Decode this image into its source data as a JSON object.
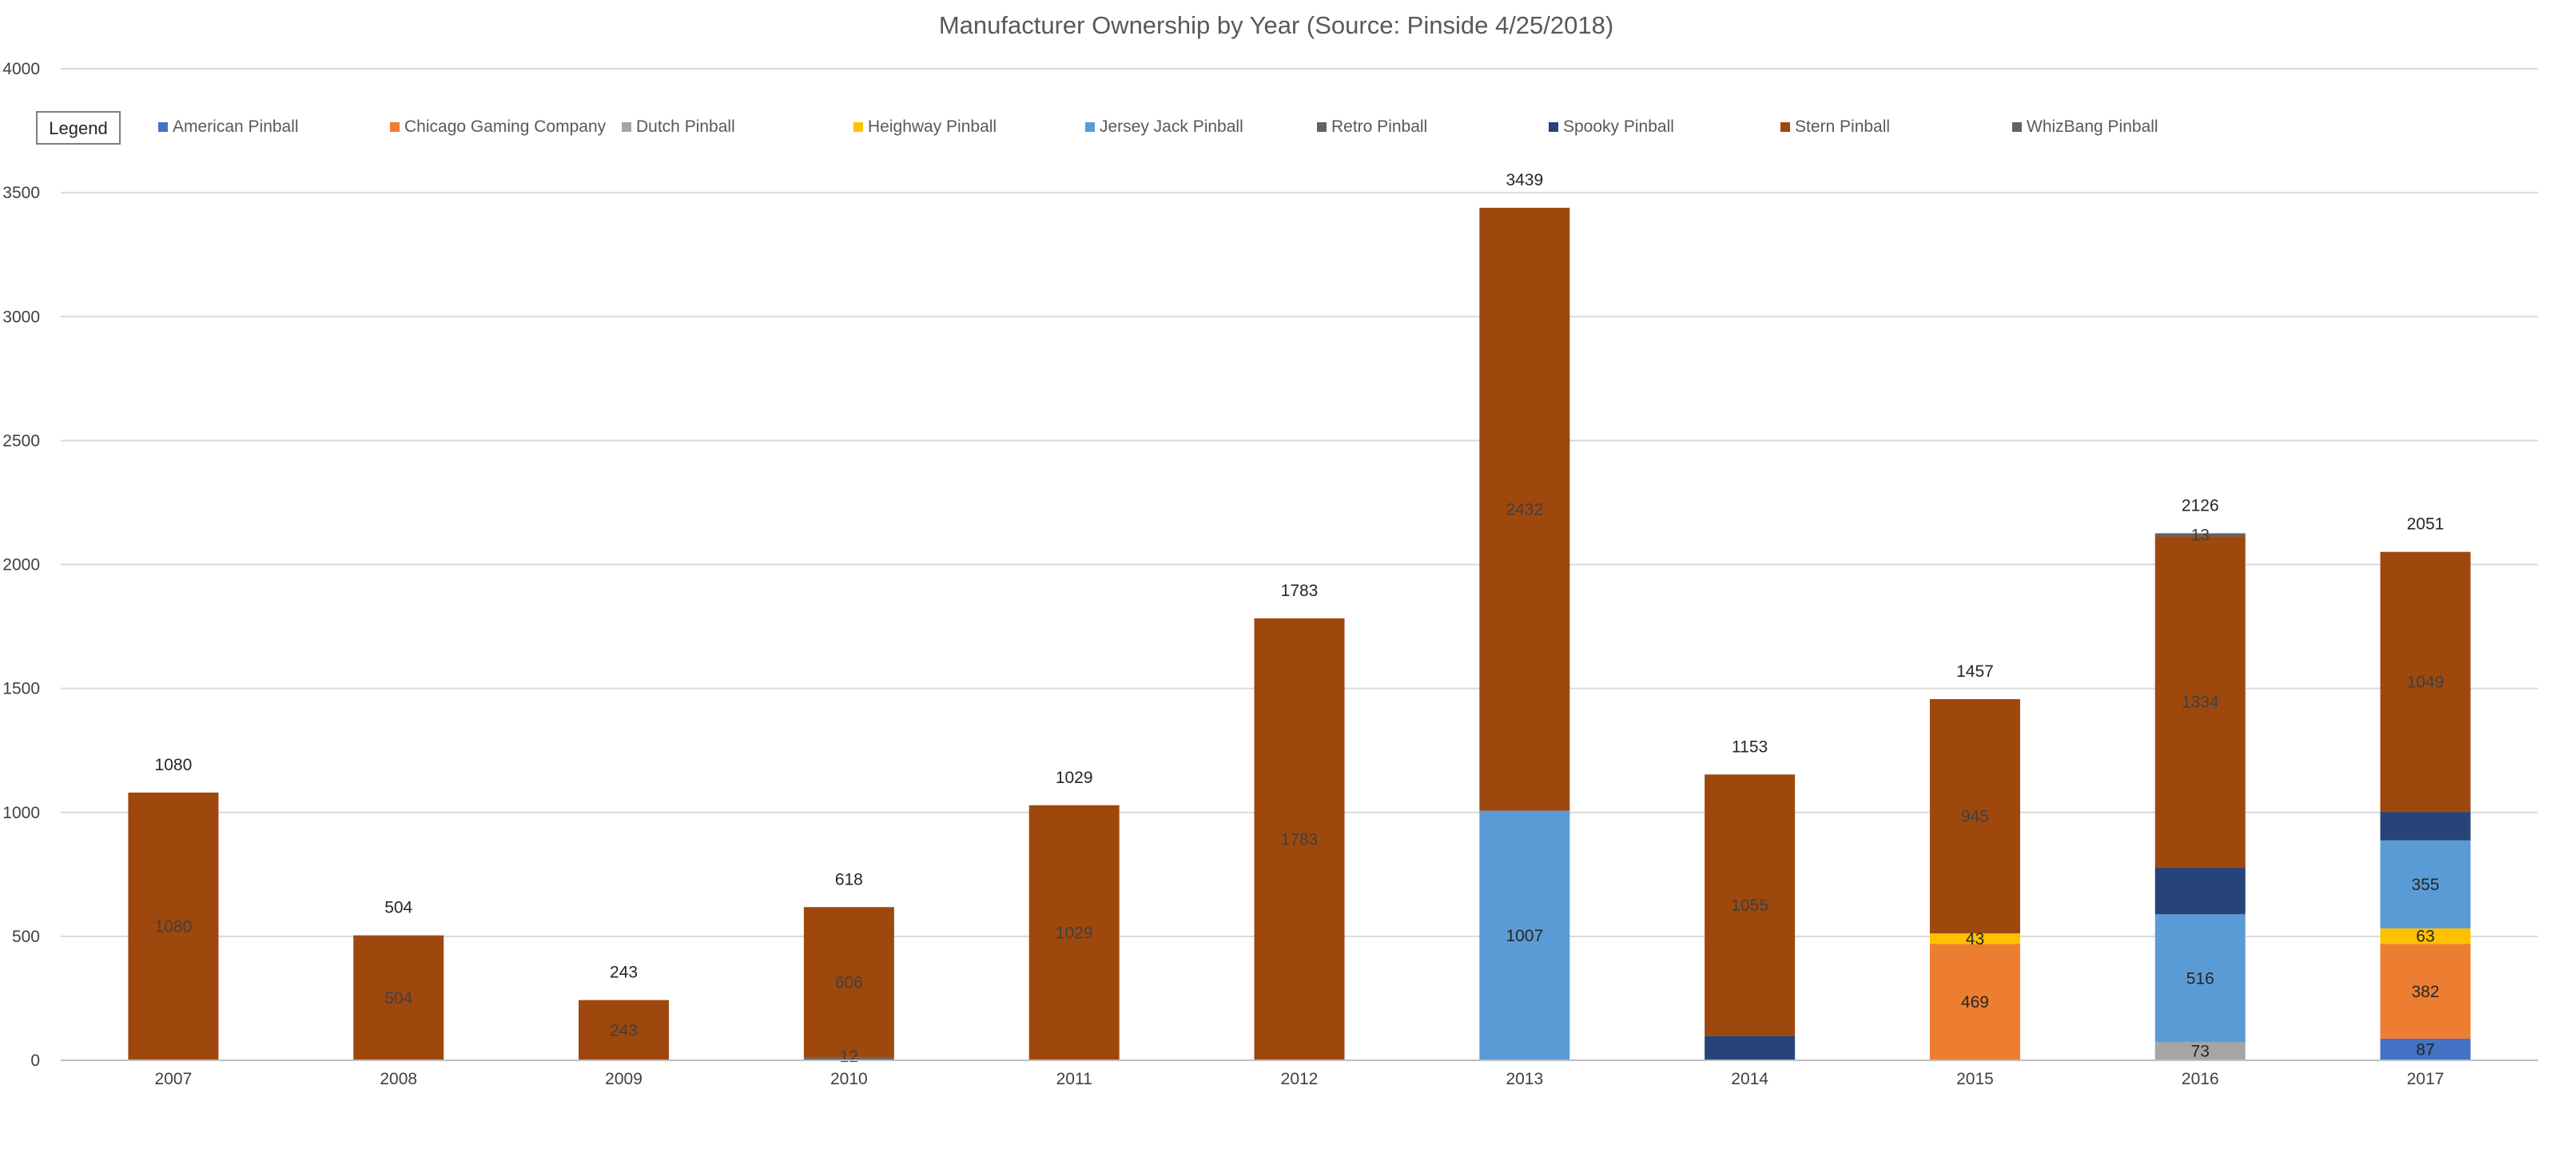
{
  "chart_data": {
    "type": "bar",
    "stacked": true,
    "title": "Manufacturer Ownership by Year (Source: Pinside 4/25/2018)",
    "xlabel": "",
    "ylabel": "",
    "ylim": [
      0,
      4000
    ],
    "yticks": [
      0,
      500,
      1000,
      1500,
      2000,
      2500,
      3000,
      3500,
      4000
    ],
    "grid": true,
    "legend_title": "Legend",
    "legend_position": "top",
    "categories": [
      "2007",
      "2008",
      "2009",
      "2010",
      "2011",
      "2012",
      "2013",
      "2014",
      "2015",
      "2016",
      "2017"
    ],
    "series": [
      {
        "name": "American Pinball",
        "color": "#4472C4",
        "values": [
          0,
          0,
          0,
          0,
          0,
          0,
          0,
          0,
          0,
          0,
          87
        ]
      },
      {
        "name": "Chicago Gaming Company",
        "color": "#ED7D31",
        "values": [
          0,
          0,
          0,
          0,
          0,
          0,
          0,
          0,
          469,
          0,
          382
        ]
      },
      {
        "name": "Dutch Pinball",
        "color": "#A5A5A5",
        "values": [
          0,
          0,
          0,
          0,
          0,
          0,
          0,
          0,
          0,
          73,
          0
        ]
      },
      {
        "name": "Heighway Pinball",
        "color": "#FFC000",
        "values": [
          0,
          0,
          0,
          0,
          0,
          0,
          0,
          0,
          43,
          0,
          63
        ]
      },
      {
        "name": "Jersey Jack Pinball",
        "color": "#5B9BD5",
        "values": [
          0,
          0,
          0,
          0,
          0,
          0,
          1007,
          0,
          0,
          516,
          355
        ]
      },
      {
        "name": "Retro Pinball",
        "color": "#636363",
        "values": [
          0,
          0,
          0,
          12,
          0,
          0,
          0,
          0,
          0,
          0,
          0
        ]
      },
      {
        "name": "Spooky Pinball",
        "color": "#264478",
        "values": [
          0,
          0,
          0,
          0,
          0,
          0,
          0,
          98,
          0,
          190,
          115
        ]
      },
      {
        "name": "Stern Pinball",
        "color": "#9E480E",
        "values": [
          1080,
          504,
          243,
          606,
          1029,
          1783,
          2432,
          1055,
          945,
          1334,
          1049
        ]
      },
      {
        "name": "WhizBang Pinball",
        "color": "#636363",
        "values": [
          0,
          0,
          0,
          0,
          0,
          0,
          0,
          0,
          0,
          13,
          0
        ]
      }
    ],
    "totals": [
      1080,
      504,
      243,
      618,
      1029,
      1783,
      3439,
      1153,
      1457,
      2126,
      2051
    ],
    "segment_labels": [
      {
        "category": "2007",
        "series": "Stern Pinball",
        "text": "1080"
      },
      {
        "category": "2008",
        "series": "Stern Pinball",
        "text": "504"
      },
      {
        "category": "2009",
        "series": "Stern Pinball",
        "text": "243"
      },
      {
        "category": "2010",
        "series": "Retro Pinball",
        "text": "12"
      },
      {
        "category": "2010",
        "series": "Stern Pinball",
        "text": "606"
      },
      {
        "category": "2011",
        "series": "Stern Pinball",
        "text": "1029"
      },
      {
        "category": "2012",
        "series": "Stern Pinball",
        "text": "1783"
      },
      {
        "category": "2013",
        "series": "Jersey Jack Pinball",
        "text": "1007"
      },
      {
        "category": "2013",
        "series": "Stern Pinball",
        "text": "2432"
      },
      {
        "category": "2014",
        "series": "Stern Pinball",
        "text": "1055"
      },
      {
        "category": "2015",
        "series": "Chicago Gaming Company",
        "text": "469"
      },
      {
        "category": "2015",
        "series": "Heighway Pinball",
        "text": "43"
      },
      {
        "category": "2015",
        "series": "Stern Pinball",
        "text": "945"
      },
      {
        "category": "2016",
        "series": "Dutch Pinball",
        "text": "73"
      },
      {
        "category": "2016",
        "series": "Jersey Jack Pinball",
        "text": "516"
      },
      {
        "category": "2016",
        "series": "Stern Pinball",
        "text": "1334"
      },
      {
        "category": "2016",
        "series": "WhizBang Pinball",
        "text": "13"
      },
      {
        "category": "2017",
        "series": "American Pinball",
        "text": "87"
      },
      {
        "category": "2017",
        "series": "Chicago Gaming Company",
        "text": "382"
      },
      {
        "category": "2017",
        "series": "Heighway Pinball",
        "text": "63"
      },
      {
        "category": "2017",
        "series": "Jersey Jack Pinball",
        "text": "355"
      },
      {
        "category": "2017",
        "series": "Stern Pinball",
        "text": "1049"
      }
    ]
  }
}
